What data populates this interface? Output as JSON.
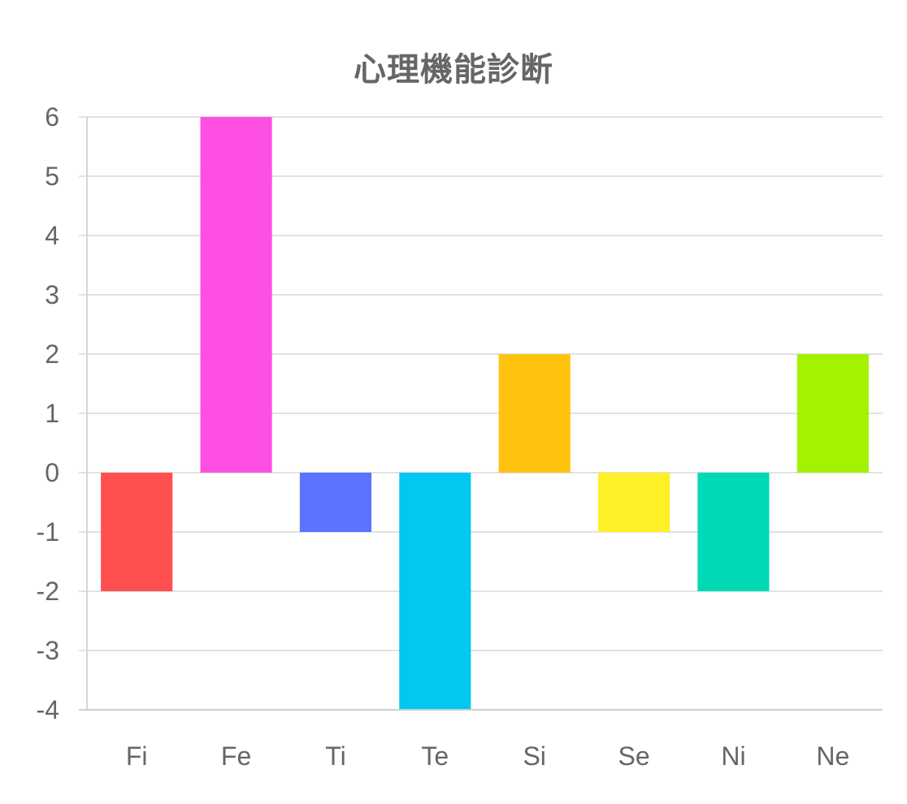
{
  "chart_data": {
    "type": "bar",
    "title": "心理機能診断",
    "xlabel": "",
    "ylabel": "",
    "categories": [
      "Fi",
      "Fe",
      "Ti",
      "Te",
      "Si",
      "Se",
      "Ni",
      "Ne"
    ],
    "values": [
      -2,
      6,
      -1,
      -4,
      2,
      -1,
      -2,
      2
    ],
    "colors": [
      "#ff4f4f",
      "#ff4fe3",
      "#5b73ff",
      "#00c8f0",
      "#ffc20e",
      "#ffef26",
      "#00d9b6",
      "#a3f200"
    ],
    "ylim": [
      -4,
      6
    ],
    "yticks": [
      "6",
      "5",
      "4",
      "3",
      "2",
      "1",
      "0",
      "-1",
      "-2",
      "-3",
      "-4"
    ],
    "grid": true,
    "legend": "none"
  }
}
